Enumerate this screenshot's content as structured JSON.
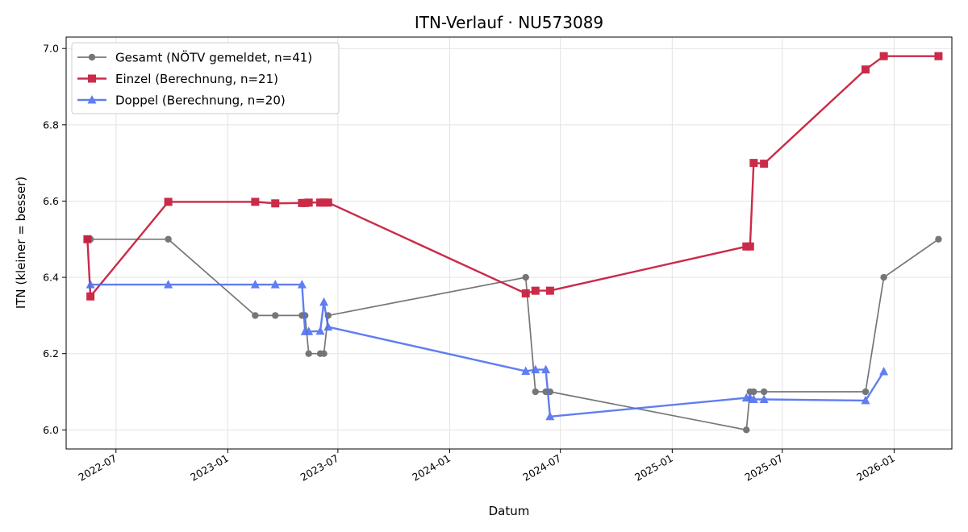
{
  "chart_data": {
    "type": "line",
    "title": "ITN-Verlauf · NU573089",
    "xlabel": "Datum",
    "ylabel": "ITN  (kleiner = besser)",
    "x_axis": "date",
    "xlim": [
      "2022-04-10",
      "2026-04-06"
    ],
    "ylim": [
      5.95,
      7.03
    ],
    "x_ticks": [
      "2022-07-01",
      "2023-01-01",
      "2023-07-01",
      "2024-01-01",
      "2024-07-01",
      "2025-01-01",
      "2025-07-01",
      "2026-01-01"
    ],
    "x_tick_labels": [
      "2022-07",
      "2023-01",
      "2023-07",
      "2024-01",
      "2024-07",
      "2025-01",
      "2025-07",
      "2026-01"
    ],
    "y_ticks": [
      6.0,
      6.2,
      6.4,
      6.6,
      6.8,
      7.0
    ],
    "y_tick_labels": [
      "6.0",
      "6.2",
      "6.4",
      "6.6",
      "6.8",
      "7.0"
    ],
    "grid": true,
    "legend_position": "top-left",
    "series": [
      {
        "name": "Gesamt (NÖTV gemeldet, n=41)",
        "color": "#555555",
        "marker": "circle",
        "points": [
          [
            "2022-05-15",
            6.5
          ],
          [
            "2022-05-20",
            6.5
          ],
          [
            "2022-09-25",
            6.5
          ],
          [
            "2023-02-15",
            6.3
          ],
          [
            "2023-03-20",
            6.3
          ],
          [
            "2023-05-03",
            6.3
          ],
          [
            "2023-05-08",
            6.3
          ],
          [
            "2023-05-14",
            6.2
          ],
          [
            "2023-06-02",
            6.2
          ],
          [
            "2023-06-08",
            6.2
          ],
          [
            "2023-06-15",
            6.3
          ],
          [
            "2024-05-05",
            6.4
          ],
          [
            "2024-05-21",
            6.1
          ],
          [
            "2024-06-07",
            6.1
          ],
          [
            "2024-06-14",
            6.1
          ],
          [
            "2025-05-03",
            6.0
          ],
          [
            "2025-05-09",
            6.1
          ],
          [
            "2025-05-15",
            6.1
          ],
          [
            "2025-06-01",
            6.1
          ],
          [
            "2025-11-15",
            6.1
          ],
          [
            "2025-12-15",
            6.4
          ],
          [
            "2026-03-15",
            6.5
          ]
        ]
      },
      {
        "name": "Einzel (Berechnung, n=21)",
        "color": "#c8203f",
        "marker": "square",
        "points": [
          [
            "2022-05-15",
            6.5
          ],
          [
            "2022-05-20",
            6.35
          ],
          [
            "2022-09-25",
            6.598
          ],
          [
            "2023-02-15",
            6.598
          ],
          [
            "2023-03-20",
            6.594
          ],
          [
            "2023-05-03",
            6.595
          ],
          [
            "2023-05-08",
            6.595
          ],
          [
            "2023-05-14",
            6.596
          ],
          [
            "2023-06-02",
            6.596
          ],
          [
            "2023-06-08",
            6.596
          ],
          [
            "2023-06-15",
            6.596
          ],
          [
            "2024-05-05",
            6.358
          ],
          [
            "2024-05-21",
            6.365
          ],
          [
            "2024-06-14",
            6.365
          ],
          [
            "2025-05-03",
            6.481
          ],
          [
            "2025-05-09",
            6.481
          ],
          [
            "2025-05-15",
            6.7
          ],
          [
            "2025-06-01",
            6.698
          ],
          [
            "2025-11-15",
            6.945
          ],
          [
            "2025-12-15",
            6.98
          ],
          [
            "2026-03-15",
            6.98
          ]
        ]
      },
      {
        "name": "Doppel (Berechnung, n=20)",
        "color": "#4f6ff0",
        "marker": "triangle",
        "points": [
          [
            "2022-05-20",
            6.381
          ],
          [
            "2022-09-25",
            6.381
          ],
          [
            "2023-02-15",
            6.381
          ],
          [
            "2023-03-20",
            6.381
          ],
          [
            "2023-05-03",
            6.381
          ],
          [
            "2023-05-08",
            6.258
          ],
          [
            "2023-05-14",
            6.258
          ],
          [
            "2023-06-02",
            6.259
          ],
          [
            "2023-06-08",
            6.335
          ],
          [
            "2023-06-15",
            6.27
          ],
          [
            "2024-05-05",
            6.154
          ],
          [
            "2024-05-21",
            6.158
          ],
          [
            "2024-06-07",
            6.158
          ],
          [
            "2024-06-14",
            6.035
          ],
          [
            "2025-05-03",
            6.084
          ],
          [
            "2025-05-09",
            6.084
          ],
          [
            "2025-05-15",
            6.08
          ],
          [
            "2025-06-01",
            6.08
          ],
          [
            "2025-11-15",
            6.077
          ],
          [
            "2025-12-15",
            6.153
          ]
        ]
      }
    ]
  }
}
